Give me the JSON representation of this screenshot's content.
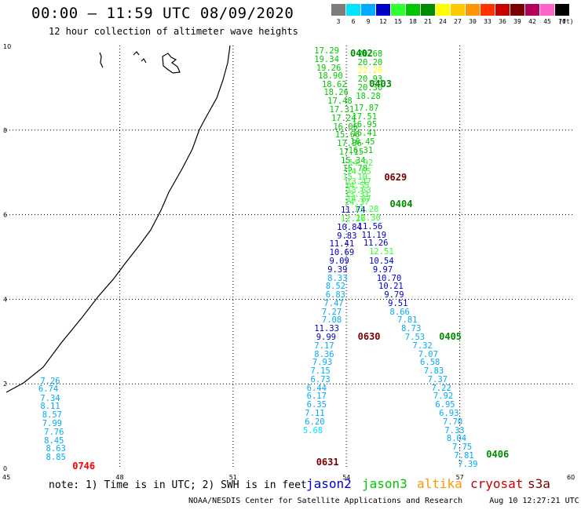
{
  "header": {
    "title": "00:00 – 11:59 UTC 08/09/2020",
    "subtitle": "12 hour collection of altimeter wave heights"
  },
  "legend": {
    "unit": "(ft)",
    "items": [
      {
        "label": "3",
        "color": "#7d7d7d"
      },
      {
        "label": "6",
        "color": "#00e5ff"
      },
      {
        "label": "9",
        "color": "#00aaff"
      },
      {
        "label": "12",
        "color": "#0000c8"
      },
      {
        "label": "15",
        "color": "#32ff32"
      },
      {
        "label": "18",
        "color": "#00c800"
      },
      {
        "label": "21",
        "color": "#008c00"
      },
      {
        "label": "24",
        "color": "#ffff00"
      },
      {
        "label": "27",
        "color": "#ffc800"
      },
      {
        "label": "30",
        "color": "#ff9600"
      },
      {
        "label": "33",
        "color": "#ff3200"
      },
      {
        "label": "36",
        "color": "#c80000"
      },
      {
        "label": "39",
        "color": "#7a0000"
      },
      {
        "label": "42",
        "color": "#b4005a"
      },
      {
        "label": "45",
        "color": "#ff64c8"
      },
      {
        "label": "70",
        "color": "#000000"
      }
    ]
  },
  "map": {
    "lon_range": [
      45,
      60
    ],
    "lat_range": [
      0,
      10
    ],
    "lon_ticks": [
      "45",
      "48",
      "51",
      "54",
      "57",
      "60"
    ],
    "lat_ticks": [
      "0",
      "2",
      "4",
      "6",
      "8",
      "10"
    ]
  },
  "passes": [
    {
      "label": "0402",
      "color": "#008c00",
      "lon": 54.1,
      "lat": 9.82
    },
    {
      "label": "0403",
      "color": "#008c00",
      "lon": 54.6,
      "lat": 9.1
    },
    {
      "label": "0629",
      "color": "#7a0000",
      "lon": 55.0,
      "lat": 6.88
    },
    {
      "label": "0404",
      "color": "#008c00",
      "lon": 55.15,
      "lat": 6.25
    },
    {
      "label": "0630",
      "color": "#7a0000",
      "lon": 54.3,
      "lat": 3.12
    },
    {
      "label": "0405",
      "color": "#008c00",
      "lon": 56.45,
      "lat": 3.12
    },
    {
      "label": "0406",
      "color": "#008c00",
      "lon": 57.7,
      "lat": 0.33
    },
    {
      "label": "0631",
      "color": "#7a0000",
      "lon": 53.2,
      "lat": 0.15
    },
    {
      "label": "0746",
      "color": "#ff0000",
      "lon": 46.75,
      "lat": 0.05
    }
  ],
  "track_values": [
    {
      "text": "17.29",
      "color": "#00c800",
      "lon": 53.15,
      "lat": 9.85
    },
    {
      "text": "19.34",
      "color": "#00c800",
      "lon": 53.15,
      "lat": 9.65
    },
    {
      "text": "19.26",
      "color": "#00c800",
      "lon": 53.2,
      "lat": 9.45
    },
    {
      "text": "18.90",
      "color": "#00c800",
      "lon": 53.25,
      "lat": 9.25
    },
    {
      "text": "18.62",
      "color": "#00c800",
      "lon": 53.35,
      "lat": 9.06
    },
    {
      "text": "18.26",
      "color": "#00c800",
      "lon": 53.4,
      "lat": 8.86
    },
    {
      "text": "17.48",
      "color": "#00c800",
      "lon": 53.5,
      "lat": 8.66
    },
    {
      "text": "17.31",
      "color": "#00c800",
      "lon": 53.55,
      "lat": 8.46
    },
    {
      "text": "17.24",
      "color": "#00c800",
      "lon": 53.6,
      "lat": 8.26
    },
    {
      "text": "16.06",
      "color": "#00c800",
      "lon": 53.65,
      "lat": 8.06
    },
    {
      "text": "15.66",
      "color": "#00c800",
      "lon": 53.7,
      "lat": 7.86
    },
    {
      "text": "17.36",
      "color": "#00c800",
      "lon": 53.75,
      "lat": 7.66
    },
    {
      "text": "17.15",
      "color": "#00c800",
      "lon": 53.8,
      "lat": 7.46
    },
    {
      "text": "15.34",
      "color": "#00c800",
      "lon": 53.85,
      "lat": 7.26
    },
    {
      "text": "15.78",
      "color": "#00c800",
      "lon": 53.9,
      "lat": 7.06
    },
    {
      "text": "15.10",
      "color": "#32ff32",
      "lon": 53.9,
      "lat": 6.86
    },
    {
      "text": "14.55",
      "color": "#32ff32",
      "lon": 53.95,
      "lat": 6.66
    },
    {
      "text": "13.31",
      "color": "#32ff32",
      "lon": 53.95,
      "lat": 6.46
    },
    {
      "text": "14.37",
      "color": "#32ff32",
      "lon": 53.95,
      "lat": 6.28
    },
    {
      "text": "11.74",
      "color": "#0000c8",
      "lon": 53.85,
      "lat": 6.08
    },
    {
      "text": "12.26",
      "color": "#32ff32",
      "lon": 53.85,
      "lat": 5.88
    },
    {
      "text": "10.84",
      "color": "#0000c8",
      "lon": 53.75,
      "lat": 5.68
    },
    {
      "text": "9.83",
      "color": "#0000c8",
      "lon": 53.75,
      "lat": 5.48
    },
    {
      "text": "11.41",
      "color": "#0000c8",
      "lon": 53.55,
      "lat": 5.28
    },
    {
      "text": "10.69",
      "color": "#0000c8",
      "lon": 53.55,
      "lat": 5.08
    },
    {
      "text": "9.09",
      "color": "#0000c8",
      "lon": 53.55,
      "lat": 4.88
    },
    {
      "text": "9.39",
      "color": "#0000c8",
      "lon": 53.5,
      "lat": 4.68
    },
    {
      "text": "8.33",
      "color": "#00aaff",
      "lon": 53.5,
      "lat": 4.48
    },
    {
      "text": "8.52",
      "color": "#00aaff",
      "lon": 53.45,
      "lat": 4.28
    },
    {
      "text": "6.83",
      "color": "#00aaff",
      "lon": 53.45,
      "lat": 4.08
    },
    {
      "text": "7.47",
      "color": "#00aaff",
      "lon": 53.4,
      "lat": 3.88
    },
    {
      "text": "7.27",
      "color": "#00aaff",
      "lon": 53.35,
      "lat": 3.68
    },
    {
      "text": "7.08",
      "color": "#00aaff",
      "lon": 53.35,
      "lat": 3.48
    },
    {
      "text": "11.33",
      "color": "#0000c8",
      "lon": 53.15,
      "lat": 3.28
    },
    {
      "text": "9.99",
      "color": "#0000c8",
      "lon": 53.2,
      "lat": 3.08
    },
    {
      "text": "7.17",
      "color": "#00aaff",
      "lon": 53.15,
      "lat": 2.88
    },
    {
      "text": "8.36",
      "color": "#00aaff",
      "lon": 53.15,
      "lat": 2.68
    },
    {
      "text": "7.93",
      "color": "#00aaff",
      "lon": 53.1,
      "lat": 2.48
    },
    {
      "text": "7.15",
      "color": "#00aaff",
      "lon": 53.05,
      "lat": 2.28
    },
    {
      "text": "6.73",
      "color": "#00aaff",
      "lon": 53.05,
      "lat": 2.08
    },
    {
      "text": "6.44",
      "color": "#00aaff",
      "lon": 52.95,
      "lat": 1.88
    },
    {
      "text": "6.17",
      "color": "#00aaff",
      "lon": 52.95,
      "lat": 1.68
    },
    {
      "text": "6.35",
      "color": "#00aaff",
      "lon": 52.95,
      "lat": 1.48
    },
    {
      "text": "7.11",
      "color": "#00aaff",
      "lon": 52.9,
      "lat": 1.28
    },
    {
      "text": "6.20",
      "color": "#00aaff",
      "lon": 52.9,
      "lat": 1.08
    },
    {
      "text": "5.68",
      "color": "#00e5ff",
      "lon": 52.85,
      "lat": 0.88
    },
    {
      "text": "20.68",
      "color": "#00c800",
      "lon": 54.3,
      "lat": 9.78
    },
    {
      "text": "20.20",
      "color": "#00c800",
      "lon": 54.3,
      "lat": 9.58
    },
    {
      "text": "22.26",
      "color": "#ffff00",
      "lon": 54.3,
      "lat": 9.38
    },
    {
      "text": "20.93",
      "color": "#00c800",
      "lon": 54.3,
      "lat": 9.18
    },
    {
      "text": "20.30",
      "color": "#00c800",
      "lon": 54.3,
      "lat": 8.98
    },
    {
      "text": "18.28",
      "color": "#00c800",
      "lon": 54.25,
      "lat": 8.78
    },
    {
      "text": "17.87",
      "color": "#00c800",
      "lon": 54.2,
      "lat": 8.5
    },
    {
      "text": "17.51",
      "color": "#00c800",
      "lon": 54.15,
      "lat": 8.3
    },
    {
      "text": "16.95",
      "color": "#00c800",
      "lon": 54.15,
      "lat": 8.1
    },
    {
      "text": "16.41",
      "color": "#00c800",
      "lon": 54.15,
      "lat": 7.9
    },
    {
      "text": "16.45",
      "color": "#00c800",
      "lon": 54.1,
      "lat": 7.7
    },
    {
      "text": "16.31",
      "color": "#00c800",
      "lon": 54.05,
      "lat": 7.5
    },
    {
      "text": "14.92",
      "color": "#32ff32",
      "lon": 54.05,
      "lat": 7.2
    },
    {
      "text": "14.65",
      "color": "#32ff32",
      "lon": 54.0,
      "lat": 7.0
    },
    {
      "text": "13.47",
      "color": "#32ff32",
      "lon": 54.0,
      "lat": 6.75
    },
    {
      "text": "13.63",
      "color": "#32ff32",
      "lon": 54.0,
      "lat": 6.55
    },
    {
      "text": "14.87",
      "color": "#32ff32",
      "lon": 54.0,
      "lat": 6.35
    },
    {
      "text": "13.28",
      "color": "#32ff32",
      "lon": 54.2,
      "lat": 6.1
    },
    {
      "text": "12.30",
      "color": "#32ff32",
      "lon": 54.25,
      "lat": 5.9
    },
    {
      "text": "11.56",
      "color": "#0000c8",
      "lon": 54.3,
      "lat": 5.7
    },
    {
      "text": "11.19",
      "color": "#0000c8",
      "lon": 54.4,
      "lat": 5.5
    },
    {
      "text": "11.26",
      "color": "#0000c8",
      "lon": 54.45,
      "lat": 5.3
    },
    {
      "text": "12.51",
      "color": "#32ff32",
      "lon": 54.6,
      "lat": 5.1
    },
    {
      "text": "10.54",
      "color": "#0000c8",
      "lon": 54.6,
      "lat": 4.88
    },
    {
      "text": "9.97",
      "color": "#0000c8",
      "lon": 54.7,
      "lat": 4.68
    },
    {
      "text": "10.70",
      "color": "#0000c8",
      "lon": 54.8,
      "lat": 4.48
    },
    {
      "text": "10.21",
      "color": "#0000c8",
      "lon": 54.85,
      "lat": 4.28
    },
    {
      "text": "9.79",
      "color": "#0000c8",
      "lon": 55.0,
      "lat": 4.08
    },
    {
      "text": "9.51",
      "color": "#0000c8",
      "lon": 55.1,
      "lat": 3.88
    },
    {
      "text": "8.66",
      "color": "#00aaff",
      "lon": 55.15,
      "lat": 3.68
    },
    {
      "text": "7.81",
      "color": "#00aaff",
      "lon": 55.35,
      "lat": 3.48
    },
    {
      "text": "8.73",
      "color": "#00aaff",
      "lon": 55.45,
      "lat": 3.28
    },
    {
      "text": "7.53",
      "color": "#00aaff",
      "lon": 55.55,
      "lat": 3.08
    },
    {
      "text": "7.32",
      "color": "#00aaff",
      "lon": 55.75,
      "lat": 2.88
    },
    {
      "text": "7.07",
      "color": "#00aaff",
      "lon": 55.9,
      "lat": 2.68
    },
    {
      "text": "6.58",
      "color": "#00aaff",
      "lon": 55.95,
      "lat": 2.48
    },
    {
      "text": "7.83",
      "color": "#00aaff",
      "lon": 56.05,
      "lat": 2.28
    },
    {
      "text": "7.37",
      "color": "#00aaff",
      "lon": 56.15,
      "lat": 2.08
    },
    {
      "text": "7.22",
      "color": "#00aaff",
      "lon": 56.25,
      "lat": 1.88
    },
    {
      "text": "7.92",
      "color": "#00aaff",
      "lon": 56.3,
      "lat": 1.68
    },
    {
      "text": "6.95",
      "color": "#00aaff",
      "lon": 56.35,
      "lat": 1.48
    },
    {
      "text": "6.93",
      "color": "#00aaff",
      "lon": 56.45,
      "lat": 1.28
    },
    {
      "text": "7.70",
      "color": "#00aaff",
      "lon": 56.55,
      "lat": 1.08
    },
    {
      "text": "7.33",
      "color": "#00aaff",
      "lon": 56.6,
      "lat": 0.88
    },
    {
      "text": "8.04",
      "color": "#00aaff",
      "lon": 56.65,
      "lat": 0.68
    },
    {
      "text": "7.75",
      "color": "#00aaff",
      "lon": 56.8,
      "lat": 0.48
    },
    {
      "text": "7.81",
      "color": "#00aaff",
      "lon": 56.85,
      "lat": 0.28
    },
    {
      "text": "7.39",
      "color": "#00aaff",
      "lon": 56.95,
      "lat": 0.08
    },
    {
      "text": "7.26",
      "color": "#00aaff",
      "lon": 45.9,
      "lat": 2.05
    },
    {
      "text": "6.74",
      "color": "#00aaff",
      "lon": 45.85,
      "lat": 1.85
    },
    {
      "text": "7.34",
      "color": "#00aaff",
      "lon": 45.9,
      "lat": 1.64
    },
    {
      "text": "8.11",
      "color": "#00aaff",
      "lon": 45.9,
      "lat": 1.44
    },
    {
      "text": "8.57",
      "color": "#00aaff",
      "lon": 45.95,
      "lat": 1.24
    },
    {
      "text": "7.99",
      "color": "#00aaff",
      "lon": 45.95,
      "lat": 1.04
    },
    {
      "text": "7.76",
      "color": "#00aaff",
      "lon": 46.0,
      "lat": 0.84
    },
    {
      "text": "8.45",
      "color": "#00aaff",
      "lon": 46.0,
      "lat": 0.64
    },
    {
      "text": "8.63",
      "color": "#00aaff",
      "lon": 46.05,
      "lat": 0.44
    },
    {
      "text": "8.85",
      "color": "#00aaff",
      "lon": 46.05,
      "lat": 0.24
    }
  ],
  "footer": {
    "note": "note: 1) Time is in UTC; 2) SWH is in feet",
    "satellites": [
      {
        "name": "jason2",
        "color": "#0000c8"
      },
      {
        "name": "jason3",
        "color": "#00c800"
      },
      {
        "name": "altika",
        "color": "#ff9600"
      },
      {
        "name": "cryosat",
        "color": "#c80000"
      },
      {
        "name": "s3a",
        "color": "#7a0000"
      }
    ],
    "credit": "NOAA/NESDIS Center for Satellite Applications and Research",
    "timestamp": "Aug 10 12:27:21 UTC 2020"
  }
}
